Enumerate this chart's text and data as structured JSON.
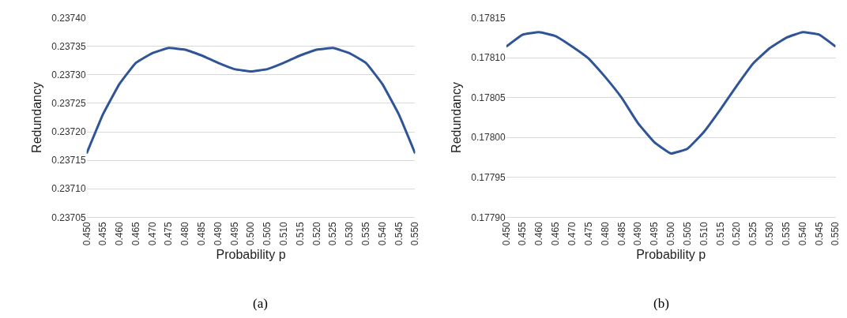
{
  "chart_data": [
    {
      "type": "line",
      "xlabel": "Probability p",
      "ylabel": "Redundancy",
      "annotations": [
        "(a)"
      ],
      "x": [
        0.45,
        0.455,
        0.46,
        0.465,
        0.47,
        0.475,
        0.48,
        0.485,
        0.49,
        0.495,
        0.5,
        0.505,
        0.51,
        0.515,
        0.52,
        0.525,
        0.53,
        0.535,
        0.54,
        0.545,
        0.55
      ],
      "series": [
        {
          "color": "#2f5597",
          "values": [
            0.237162,
            0.237231,
            0.237284,
            0.237321,
            0.237338,
            0.237347,
            0.237344,
            0.237334,
            0.237321,
            0.23731,
            0.237306,
            0.23731,
            0.237321,
            0.237334,
            0.237344,
            0.237347,
            0.237338,
            0.237321,
            0.237284,
            0.237231,
            0.237162
          ]
        }
      ],
      "xlim": [
        0.45,
        0.55
      ],
      "xticks": [
        {
          "value": 0.45,
          "label": "0.450"
        },
        {
          "value": 0.455,
          "label": "0.455"
        },
        {
          "value": 0.46,
          "label": "0.460"
        },
        {
          "value": 0.465,
          "label": "0.465"
        },
        {
          "value": 0.47,
          "label": "0.470"
        },
        {
          "value": 0.475,
          "label": "0.475"
        },
        {
          "value": 0.48,
          "label": "0.480"
        },
        {
          "value": 0.485,
          "label": "0.485"
        },
        {
          "value": 0.49,
          "label": "0.490"
        },
        {
          "value": 0.495,
          "label": "0.495"
        },
        {
          "value": 0.5,
          "label": "0.500"
        },
        {
          "value": 0.505,
          "label": "0.505"
        },
        {
          "value": 0.51,
          "label": "0.510"
        },
        {
          "value": 0.515,
          "label": "0.515"
        },
        {
          "value": 0.52,
          "label": "0.520"
        },
        {
          "value": 0.525,
          "label": "0.525"
        },
        {
          "value": 0.53,
          "label": "0.530"
        },
        {
          "value": 0.535,
          "label": "0.535"
        },
        {
          "value": 0.54,
          "label": "0.540"
        },
        {
          "value": 0.545,
          "label": "0.545"
        },
        {
          "value": 0.55,
          "label": "0.550"
        }
      ],
      "ylim": [
        0.23705,
        0.2374
      ],
      "yticks": [
        {
          "value": 0.23705,
          "label": "0.23705"
        },
        {
          "value": 0.2371,
          "label": "0.23710"
        },
        {
          "value": 0.23715,
          "label": "0.23715"
        },
        {
          "value": 0.2372,
          "label": "0.23720"
        },
        {
          "value": 0.23725,
          "label": "0.23725"
        },
        {
          "value": 0.2373,
          "label": "0.23730"
        },
        {
          "value": 0.23735,
          "label": "0.23735"
        },
        {
          "value": 0.2374,
          "label": "0.23740"
        }
      ],
      "grid": "y",
      "marker": "none",
      "line_style": "solid"
    },
    {
      "type": "line",
      "xlabel": "Probability p",
      "ylabel": "Redundancy",
      "annotations": [
        "(b)"
      ],
      "x": [
        0.45,
        0.455,
        0.46,
        0.465,
        0.47,
        0.475,
        0.48,
        0.485,
        0.49,
        0.495,
        0.5,
        0.505,
        0.51,
        0.515,
        0.52,
        0.525,
        0.53,
        0.535,
        0.54,
        0.545,
        0.55
      ],
      "series": [
        {
          "color": "#2f5597",
          "values": [
            0.178114,
            0.178129,
            0.178132,
            0.178127,
            0.178114,
            0.178099,
            0.178076,
            0.17805,
            0.178018,
            0.177994,
            0.17798,
            0.177986,
            0.178007,
            0.178035,
            0.178065,
            0.178093,
            0.178112,
            0.178125,
            0.178132,
            0.178129,
            0.178114
          ]
        }
      ],
      "xlim": [
        0.45,
        0.55
      ],
      "xticks": [
        {
          "value": 0.45,
          "label": "0.450"
        },
        {
          "value": 0.455,
          "label": "0.455"
        },
        {
          "value": 0.46,
          "label": "0.460"
        },
        {
          "value": 0.465,
          "label": "0.465"
        },
        {
          "value": 0.47,
          "label": "0.470"
        },
        {
          "value": 0.475,
          "label": "0.475"
        },
        {
          "value": 0.48,
          "label": "0.480"
        },
        {
          "value": 0.485,
          "label": "0.485"
        },
        {
          "value": 0.49,
          "label": "0.490"
        },
        {
          "value": 0.495,
          "label": "0.495"
        },
        {
          "value": 0.5,
          "label": "0.500"
        },
        {
          "value": 0.505,
          "label": "0.505"
        },
        {
          "value": 0.51,
          "label": "0.510"
        },
        {
          "value": 0.515,
          "label": "0.515"
        },
        {
          "value": 0.52,
          "label": "0.520"
        },
        {
          "value": 0.525,
          "label": "0.525"
        },
        {
          "value": 0.53,
          "label": "0.530"
        },
        {
          "value": 0.535,
          "label": "0.535"
        },
        {
          "value": 0.54,
          "label": "0.540"
        },
        {
          "value": 0.545,
          "label": "0.545"
        },
        {
          "value": 0.55,
          "label": "0.550"
        }
      ],
      "ylim": [
        0.1779,
        0.17815
      ],
      "yticks": [
        {
          "value": 0.1779,
          "label": "0.17790"
        },
        {
          "value": 0.17795,
          "label": "0.17795"
        },
        {
          "value": 0.178,
          "label": "0.17800"
        },
        {
          "value": 0.17805,
          "label": "0.17805"
        },
        {
          "value": 0.1781,
          "label": "0.17810"
        },
        {
          "value": 0.17815,
          "label": "0.17815"
        }
      ],
      "grid": "y",
      "marker": "none",
      "line_style": "solid"
    }
  ]
}
